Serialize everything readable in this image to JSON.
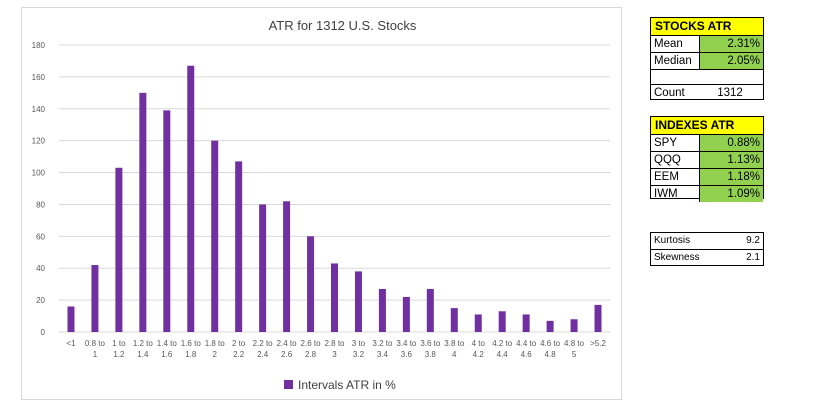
{
  "chart_data": {
    "type": "bar",
    "title": "ATR for 1312 U.S. Stocks",
    "categories": [
      [
        "<1"
      ],
      [
        "0.8 to",
        "1"
      ],
      [
        "1 to",
        "1.2"
      ],
      [
        "1.2 to",
        "1.4"
      ],
      [
        "1.4 to",
        "1.6"
      ],
      [
        "1.6 to",
        "1.8"
      ],
      [
        "1.8 to",
        "2"
      ],
      [
        "2 to",
        "2.2"
      ],
      [
        "2.2 to",
        "2.4"
      ],
      [
        "2.4 to",
        "2.6"
      ],
      [
        "2.6 to",
        "2.8"
      ],
      [
        "2.8 to",
        "3"
      ],
      [
        "3 to",
        "3.2"
      ],
      [
        "3.2 to",
        "3.4"
      ],
      [
        "3.4 to",
        "3.6"
      ],
      [
        "3.6 to",
        "3.8"
      ],
      [
        "3.8 to",
        "4"
      ],
      [
        "4 to",
        "4.2"
      ],
      [
        "4.2 to",
        "4.4"
      ],
      [
        "4.4 to",
        "4.6"
      ],
      [
        "4.6 to",
        "4.8"
      ],
      [
        "4.8 to",
        "5"
      ],
      [
        ">5.2"
      ]
    ],
    "series": [
      {
        "name": "Intervals ATR in %",
        "values": [
          16,
          42,
          103,
          150,
          139,
          167,
          120,
          107,
          80,
          82,
          60,
          43,
          38,
          27,
          22,
          27,
          15,
          11,
          13,
          11,
          7,
          8,
          17
        ]
      }
    ],
    "ylim": [
      0,
      180
    ],
    "yticks": [
      0,
      20,
      40,
      60,
      80,
      100,
      120,
      140,
      160,
      180
    ],
    "grid": true,
    "legend": "bottom",
    "bar_color": "#7030a0"
  },
  "stocks": {
    "title": "STOCKS ATR",
    "rows": [
      {
        "label": "Mean",
        "value": "2.31%"
      },
      {
        "label": "Median",
        "value": "2.05%"
      }
    ],
    "count_label": "Count",
    "count_value": "1312"
  },
  "indexes": {
    "title": "INDEXES ATR",
    "rows": [
      {
        "label": "SPY",
        "value": "0.88%"
      },
      {
        "label": "QQQ",
        "value": "1.13%"
      },
      {
        "label": "EEM",
        "value": "1.18%"
      },
      {
        "label": "IWM",
        "value": "1.09%"
      }
    ]
  },
  "stats": {
    "rows": [
      {
        "label": "Kurtosis",
        "value": "9.2"
      },
      {
        "label": "Skewness",
        "value": "2.1"
      }
    ]
  }
}
